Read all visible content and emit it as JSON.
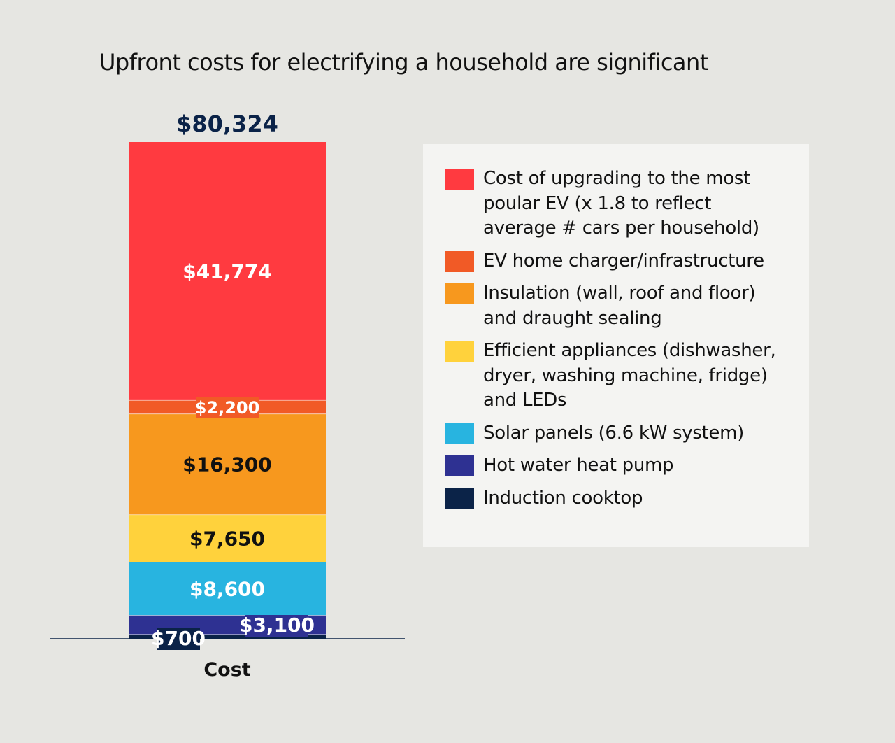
{
  "chart_data": {
    "type": "bar",
    "stacked": true,
    "title": "Upfront costs for electrifying a household are significant",
    "categories": [
      "Cost"
    ],
    "total_label": "$80,324",
    "total": 80324,
    "legend_position": "right",
    "grid": false,
    "series": [
      {
        "name": "Induction cooktop",
        "values": [
          700
        ],
        "label": "$700",
        "color": "#0b2348",
        "label_color": "#ffffff"
      },
      {
        "name": "Hot water heat pump",
        "values": [
          3100
        ],
        "label": "$3,100",
        "color": "#2e3192",
        "label_color": "#ffffff"
      },
      {
        "name": "Solar panels (6.6 kW system)",
        "values": [
          8600
        ],
        "label": "$8,600",
        "color": "#28b4e0",
        "label_color": "#ffffff"
      },
      {
        "name": "Efficient appliances (dishwasher, dryer, washing machine, fridge) and LEDs",
        "values": [
          7650
        ],
        "label": "$7,650",
        "color": "#ffd23c",
        "label_color": "#111111"
      },
      {
        "name": "Insulation (wall, roof and floor) and draught sealing",
        "values": [
          16300
        ],
        "label": "$16,300",
        "color": "#f7981e",
        "label_color": "#111111"
      },
      {
        "name": "EV home charger/infrastructure",
        "values": [
          2200
        ],
        "label": "$2,200",
        "color": "#f15a26",
        "label_color": "#ffffff"
      },
      {
        "name": "Cost of upgrading to the most poular EV (x 1.8 to reflect average # cars per household)",
        "values": [
          41774
        ],
        "label": "$41,774",
        "color": "#ff3a40",
        "label_color": "#ffffff"
      }
    ]
  }
}
